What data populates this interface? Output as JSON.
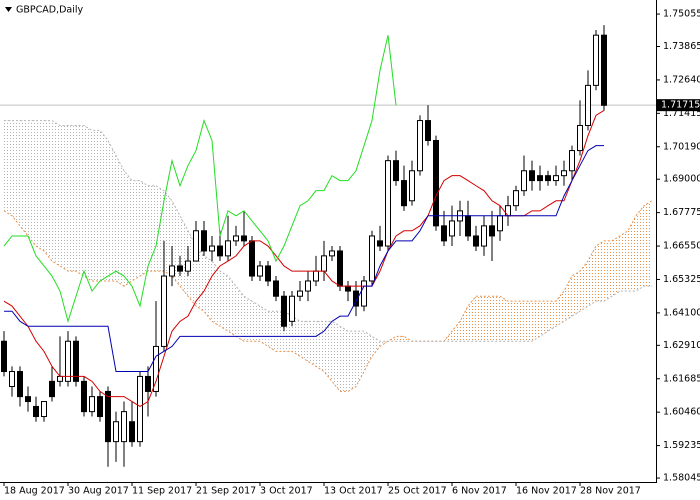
{
  "chart_data": {
    "type": "candlestick",
    "title": "GBPCAD,Daily",
    "categories": [
      "18 Aug 2017",
      null,
      null,
      null,
      null,
      null,
      null,
      null,
      "30 Aug 2017",
      null,
      null,
      null,
      null,
      null,
      null,
      null,
      "11 Sep 2017",
      null,
      null,
      null,
      null,
      null,
      null,
      null,
      "21 Sep 2017",
      null,
      null,
      null,
      null,
      null,
      null,
      null,
      "3 Oct 2017",
      null,
      null,
      null,
      null,
      null,
      null,
      null,
      "13 Oct 2017",
      null,
      null,
      null,
      null,
      null,
      null,
      null,
      "25 Oct 2017",
      null,
      null,
      null,
      null,
      null,
      null,
      null,
      "6 Nov 2017",
      null,
      null,
      null,
      null,
      null,
      null,
      null,
      "16 Nov 2017",
      null,
      null,
      null,
      null,
      null,
      null,
      null,
      "28 Nov 2017",
      null,
      null,
      null,
      null,
      null,
      null,
      null,
      null,
      null
    ],
    "open": [
      1.6306,
      1.614,
      1.6195,
      1.6103,
      1.6067,
      1.603,
      1.6159,
      1.6159,
      1.6159,
      1.6306,
      1.6159,
      1.6048,
      1.6103,
      1.6122,
      1.5938,
      1.5938,
      1.6011,
      1.5938,
      1.6177,
      1.6122,
      1.6287,
      1.6545,
      1.6582,
      1.6563,
      1.66,
      1.6711,
      1.6637,
      1.6655,
      1.6619,
      1.6674,
      1.6692,
      1.6674,
      1.6545,
      1.6582,
      1.6527,
      1.6471,
      1.6379,
      1.6471,
      1.649,
      1.6527,
      1.6563,
      1.6619,
      1.6637,
      1.6508,
      1.649,
      1.6435,
      1.6527,
      1.6674,
      1.6655,
      1.6968,
      1.6895,
      1.6821,
      1.6931,
      1.7115,
      1.7042,
      1.6729,
      1.6692,
      1.6747,
      1.6766,
      1.6692,
      1.6655,
      1.6729,
      1.6711,
      1.6766,
      1.6803,
      1.6858,
      1.6931,
      1.6913,
      1.6913,
      1.6895,
      1.6913,
      1.6931,
      1.7005,
      1.7097,
      1.7244,
      1.7428,
      null,
      null,
      null,
      null,
      null,
      null
    ],
    "high": [
      1.6343,
      1.6214,
      1.6214,
      1.614,
      1.6103,
      1.6085,
      1.6214,
      1.6324,
      1.6343,
      1.6324,
      1.6177,
      1.614,
      1.6122,
      1.614,
      1.6048,
      1.6085,
      1.6085,
      1.6195,
      1.6214,
      1.6453,
      1.6674,
      1.6655,
      1.6619,
      1.6655,
      1.6747,
      1.6747,
      1.6692,
      1.6711,
      1.6766,
      1.6729,
      1.6784,
      1.6692,
      1.66,
      1.66,
      1.6545,
      1.649,
      1.649,
      1.6527,
      1.6563,
      1.6619,
      1.6674,
      1.6655,
      1.6655,
      1.6527,
      1.6527,
      1.6545,
      1.6711,
      1.6729,
      1.6987,
      1.7005,
      1.695,
      1.6968,
      1.7134,
      1.7171,
      1.706,
      1.6784,
      1.6803,
      1.6821,
      1.6821,
      1.6729,
      1.6766,
      1.6784,
      1.6803,
      1.6839,
      1.6876,
      1.6987,
      1.6968,
      1.695,
      1.6931,
      1.695,
      1.6968,
      1.7023,
      1.7189,
      1.7299,
      1.7447,
      1.7465,
      null,
      null,
      null,
      null,
      null,
      null
    ],
    "low": [
      1.6177,
      1.6103,
      1.6067,
      1.6048,
      1.6011,
      1.6011,
      1.6085,
      1.614,
      1.614,
      1.614,
      1.603,
      1.603,
      1.6011,
      1.5846,
      1.5864,
      1.5846,
      1.5919,
      1.5919,
      1.603,
      1.6103,
      1.6269,
      1.6508,
      1.6545,
      1.6545,
      1.66,
      1.6619,
      1.66,
      1.66,
      1.66,
      1.6655,
      1.6655,
      1.6527,
      1.6527,
      1.6508,
      1.6453,
      1.6343,
      1.6361,
      1.6453,
      1.6453,
      1.6508,
      1.6527,
      1.66,
      1.649,
      1.6453,
      1.6398,
      1.6416,
      1.6508,
      1.6637,
      1.6637,
      1.6876,
      1.6784,
      1.6803,
      1.6913,
      1.7023,
      1.6711,
      1.6655,
      1.6655,
      1.6692,
      1.6674,
      1.6637,
      1.6619,
      1.66,
      1.6674,
      1.6729,
      1.6784,
      1.6839,
      1.6858,
      1.6858,
      1.6876,
      1.6876,
      1.6876,
      1.6895,
      1.6987,
      1.7079,
      1.7226,
      1.7152,
      null,
      null,
      null,
      null,
      null,
      null
    ],
    "close": [
      1.6195,
      1.6195,
      1.6103,
      1.6085,
      1.603,
      1.6085,
      1.6103,
      1.6177,
      1.6306,
      1.6159,
      1.6048,
      1.6103,
      1.603,
      1.5938,
      1.6011,
      1.6048,
      1.5938,
      1.6177,
      1.6122,
      1.6287,
      1.6545,
      1.6582,
      1.6563,
      1.66,
      1.6711,
      1.6637,
      1.6655,
      1.6619,
      1.6674,
      1.6692,
      1.6674,
      1.6545,
      1.6582,
      1.6527,
      1.6471,
      1.6361,
      1.6471,
      1.649,
      1.6527,
      1.6563,
      1.6619,
      1.6637,
      1.6508,
      1.649,
      1.6435,
      1.6527,
      1.6692,
      1.6655,
      1.6968,
      1.6895,
      1.6803,
      1.6931,
      1.7115,
      1.7042,
      1.6729,
      1.6674,
      1.6747,
      1.6784,
      1.6692,
      1.6655,
      1.6729,
      1.6692,
      1.6766,
      1.6803,
      1.6858,
      1.6931,
      1.6895,
      1.6895,
      1.6895,
      1.6913,
      1.6931,
      1.7005,
      1.7097,
      1.7244,
      1.7428,
      1.7171,
      null,
      null,
      null,
      null,
      null,
      null
    ],
    "up_color": "#ffffff",
    "down_color": "#000000",
    "lines": [
      {
        "color": "#d40000",
        "values": [
          1.6453,
          1.6435,
          1.6398,
          1.6361,
          1.6306,
          1.6269,
          1.6214,
          1.6177,
          1.6177,
          1.6177,
          1.6177,
          1.6159,
          1.6122,
          1.6103,
          1.6103,
          1.6103,
          1.6085,
          1.6067,
          1.6085,
          1.6159,
          1.6251,
          1.6343,
          1.6379,
          1.6398,
          1.6453,
          1.649,
          1.6545,
          1.6582,
          1.66,
          1.6619,
          1.6655,
          1.6674,
          1.6674,
          1.6655,
          1.6619,
          1.6582,
          1.6563,
          1.6563,
          1.6563,
          1.6563,
          1.6563,
          1.6527,
          1.6508,
          1.6508,
          1.6508,
          1.6508,
          1.6508,
          1.6563,
          1.6637,
          1.6692,
          1.6711,
          1.6711,
          1.6729,
          1.6766,
          1.6839,
          1.6895,
          1.6913,
          1.6913,
          1.6895,
          1.6876,
          1.6858,
          1.6821,
          1.6803,
          1.6766,
          1.6766,
          1.6766,
          1.6784,
          1.6784,
          1.6803,
          1.6821,
          1.6821,
          1.6895,
          1.6968,
          1.706,
          1.7134,
          1.7152,
          null,
          null,
          null,
          null,
          null,
          null
        ]
      },
      {
        "color": "#0000b4",
        "values": [
          1.6416,
          1.6416,
          1.6379,
          1.6361,
          1.6361,
          1.6361,
          1.6361,
          1.6361,
          1.6361,
          1.6361,
          1.6361,
          1.6361,
          1.6361,
          1.6361,
          1.6195,
          1.6195,
          1.6195,
          1.6195,
          1.6195,
          1.6251,
          1.6269,
          1.6287,
          1.6324,
          1.6324,
          1.6324,
          1.6324,
          1.6324,
          1.6324,
          1.6324,
          1.6324,
          1.6324,
          1.6324,
          1.6324,
          1.6324,
          1.6324,
          1.6324,
          1.6324,
          1.6324,
          1.6324,
          1.6324,
          1.6343,
          1.6379,
          1.6398,
          1.6398,
          1.6453,
          1.6508,
          1.6508,
          1.6582,
          1.6637,
          1.6674,
          1.6674,
          1.6674,
          1.6711,
          1.6766,
          1.6766,
          1.6766,
          1.6766,
          1.6766,
          1.6766,
          1.6766,
          1.6766,
          1.6766,
          1.6766,
          1.6766,
          1.6766,
          1.6766,
          1.6766,
          1.6766,
          1.6766,
          1.6766,
          1.6839,
          1.6895,
          1.695,
          1.7005,
          1.7023,
          1.7023,
          null,
          null,
          null,
          null,
          null,
          null
        ]
      },
      {
        "color": "#22dd22",
        "values": [
          1.6655,
          1.6692,
          1.6692,
          1.6692,
          1.6619,
          1.6582,
          1.6545,
          1.649,
          1.6379,
          1.6471,
          1.6563,
          1.649,
          1.6527,
          1.6545,
          1.6563,
          1.6545,
          1.6508,
          1.6435,
          1.6582,
          1.6655,
          1.6821,
          1.6968,
          1.6876,
          1.695,
          1.7005,
          1.7115,
          1.7042,
          1.6692,
          1.6784,
          1.6766,
          1.6784,
          1.6747,
          1.6711,
          1.6674,
          1.66,
          1.6655,
          1.6729,
          1.6803,
          1.6821,
          1.6858,
          1.6858,
          1.6913,
          1.6895,
          1.6895,
          1.6931,
          1.7023,
          1.7115,
          1.7299,
          1.7428,
          1.7171,
          null,
          null,
          null,
          null,
          null,
          null,
          null,
          null,
          null,
          null,
          null,
          null,
          null,
          null,
          null,
          null,
          null,
          null,
          null,
          null,
          null,
          null,
          null,
          null,
          null,
          null,
          null,
          null,
          null,
          null,
          null,
          null
        ]
      }
    ],
    "cloud": {
      "up_color": "#e8904a",
      "down_color": "#b4b4b4",
      "span_a": [
        1.6784,
        1.6766,
        1.6729,
        1.6692,
        1.6655,
        1.6637,
        1.66,
        1.6582,
        1.6563,
        1.6563,
        1.6545,
        1.6527,
        1.6527,
        1.6527,
        1.6527,
        1.6508,
        1.6527,
        1.6545,
        1.6563,
        1.6563,
        1.6563,
        1.6545,
        1.6508,
        1.6471,
        1.6435,
        1.6416,
        1.6379,
        1.6361,
        1.6343,
        1.6324,
        1.6306,
        1.6306,
        1.6306,
        1.6287,
        1.6269,
        1.6269,
        1.6269,
        1.6251,
        1.6232,
        1.6214,
        1.6195,
        1.6159,
        1.6122,
        1.6122,
        1.614,
        1.6195,
        1.6251,
        1.6287,
        1.6306,
        1.6324,
        1.6324,
        1.6306,
        1.6306,
        1.6306,
        1.6306,
        1.6306,
        1.6343,
        1.6379,
        1.6435,
        1.6471,
        1.6471,
        1.6471,
        1.6471,
        1.6453,
        1.6453,
        1.6453,
        1.6453,
        1.6453,
        1.6453,
        1.6453,
        1.649,
        1.6545,
        1.6563,
        1.66,
        1.6655,
        1.6674,
        1.6674,
        1.6692,
        1.6711,
        1.6766,
        1.6803,
        1.6821
      ],
      "span_b": [
        1.7115,
        1.7115,
        1.7115,
        1.7115,
        1.7115,
        1.7115,
        1.7115,
        1.7097,
        1.7097,
        1.7097,
        1.7097,
        1.7079,
        1.7079,
        1.7042,
        1.6987,
        1.6931,
        1.6895,
        1.6895,
        1.6876,
        1.6876,
        1.6858,
        1.6821,
        1.6766,
        1.6711,
        1.6655,
        1.6619,
        1.66,
        1.6563,
        1.6545,
        1.6508,
        1.6471,
        1.6453,
        1.6435,
        1.6416,
        1.6416,
        1.6416,
        1.6398,
        1.6379,
        1.6379,
        1.6379,
        1.6379,
        1.6379,
        1.6361,
        1.6343,
        1.6343,
        1.6343,
        1.6324,
        1.6306,
        1.6306,
        1.6306,
        1.6306,
        1.6306,
        1.6306,
        1.6306,
        1.6306,
        1.6306,
        1.6306,
        1.6306,
        1.6306,
        1.6306,
        1.6306,
        1.6306,
        1.6306,
        1.6306,
        1.6306,
        1.6306,
        1.6306,
        1.6324,
        1.6343,
        1.6361,
        1.6379,
        1.6398,
        1.6416,
        1.6435,
        1.6453,
        1.6453,
        1.6471,
        1.649,
        1.649,
        1.649,
        1.6508,
        1.6508
      ]
    },
    "current_price": 1.71715,
    "ylim": [
      1.579,
      1.7557
    ],
    "yticks": [
      1.75055,
      1.73865,
      {
        "value": 1.7264,
        "label": "1.72640"
      },
      1.71415,
      {
        "value": 1.7019,
        "label": "1.70190"
      },
      {
        "value": 1.69,
        "label": "1.69000"
      },
      1.67775,
      {
        "value": 1.6655,
        "label": "1.66550"
      },
      1.65325,
      {
        "value": 1.641,
        "label": "1.64100"
      },
      {
        "value": 1.6291,
        "label": "1.62910"
      },
      1.61685,
      {
        "value": 1.6046,
        "label": "1.60460"
      },
      1.59235,
      1.58045
    ]
  }
}
